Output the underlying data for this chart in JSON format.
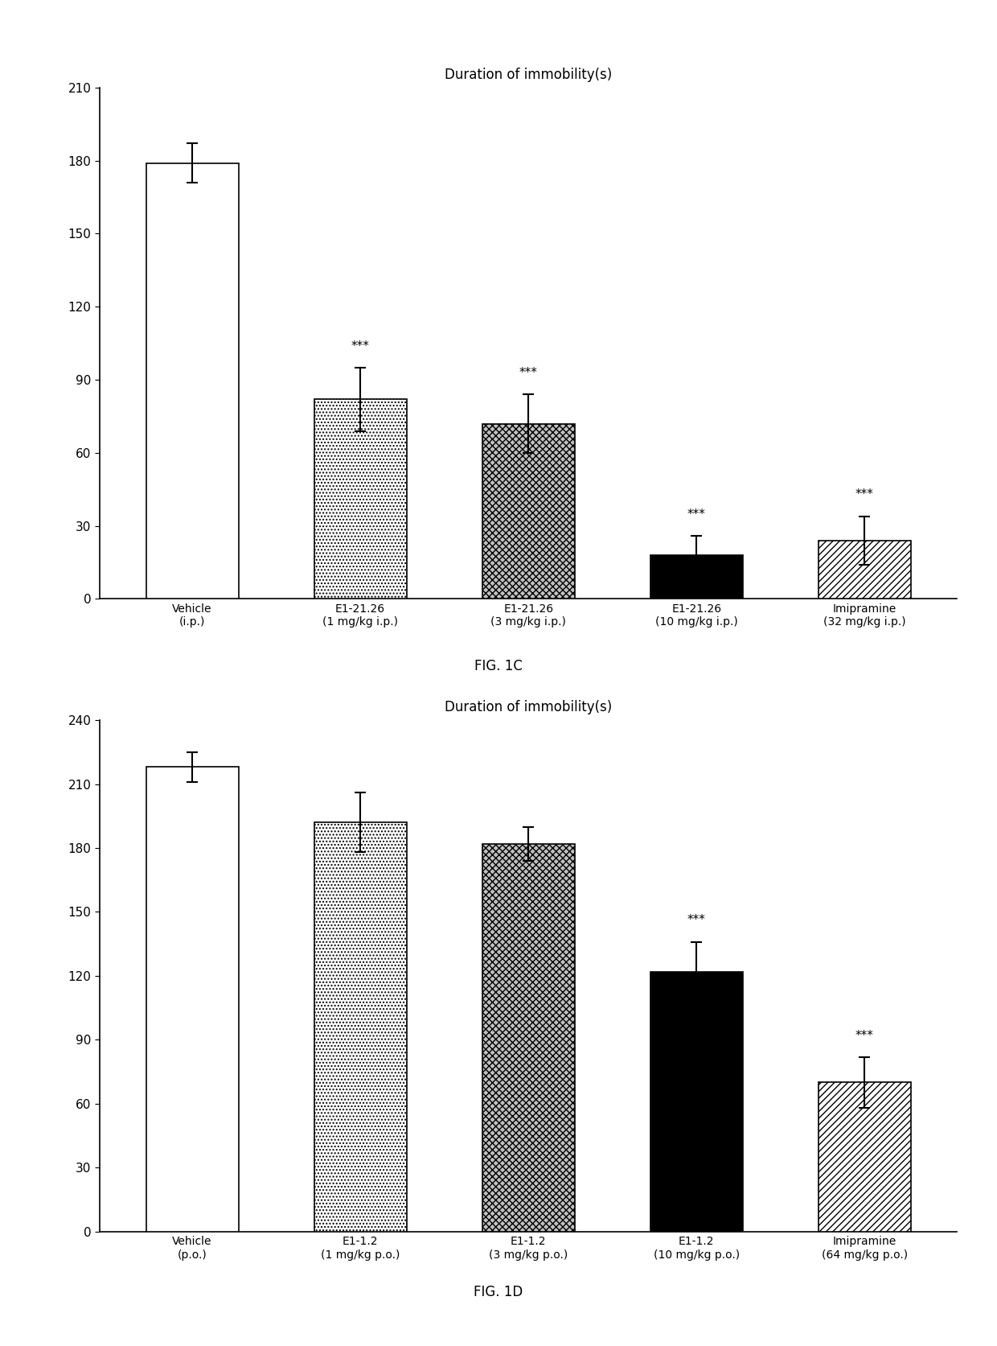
{
  "fig1c": {
    "title": "Duration of immobility(s)",
    "fig_label": "FIG. 1C",
    "categories": [
      "Vehicle\n(i.p.)",
      "E1-21.26\n(1 mg/kg i.p.)",
      "E1-21.26\n(3 mg/kg i.p.)",
      "E1-21.26\n(10 mg/kg i.p.)",
      "Imipramine\n(32 mg/kg i.p.)"
    ],
    "values": [
      179,
      82,
      72,
      18,
      24
    ],
    "errors": [
      8,
      13,
      12,
      8,
      10
    ],
    "sig_labels": [
      "",
      "***",
      "***",
      "***",
      "***"
    ],
    "ylim": [
      0,
      210
    ],
    "yticks": [
      0,
      30,
      60,
      90,
      120,
      150,
      180,
      210
    ],
    "bar_styles": [
      "white",
      "dots",
      "cross_hatch",
      "black",
      "diag_hatch"
    ]
  },
  "fig1d": {
    "title": "Duration of immobility(s)",
    "fig_label": "FIG. 1D",
    "categories": [
      "Vehicle\n(p.o.)",
      "E1-1.2\n(1 mg/kg p.o.)",
      "E1-1.2\n(3 mg/kg p.o.)",
      "E1-1.2\n(10 mg/kg p.o.)",
      "Imipramine\n(64 mg/kg p.o.)"
    ],
    "values": [
      218,
      192,
      182,
      122,
      70
    ],
    "errors": [
      7,
      14,
      8,
      14,
      12
    ],
    "sig_labels": [
      "",
      "",
      "",
      "***",
      "***"
    ],
    "ylim": [
      0,
      240
    ],
    "yticks": [
      0,
      30,
      60,
      90,
      120,
      150,
      180,
      210,
      240
    ],
    "bar_styles": [
      "white",
      "dots",
      "cross_hatch",
      "black",
      "diag_hatch"
    ]
  },
  "background_color": "#ffffff",
  "fontsize_title": 12,
  "fontsize_ticks": 11,
  "fontsize_xticklabels": 10,
  "fontsize_sig": 11,
  "fontsize_figlabel": 12
}
